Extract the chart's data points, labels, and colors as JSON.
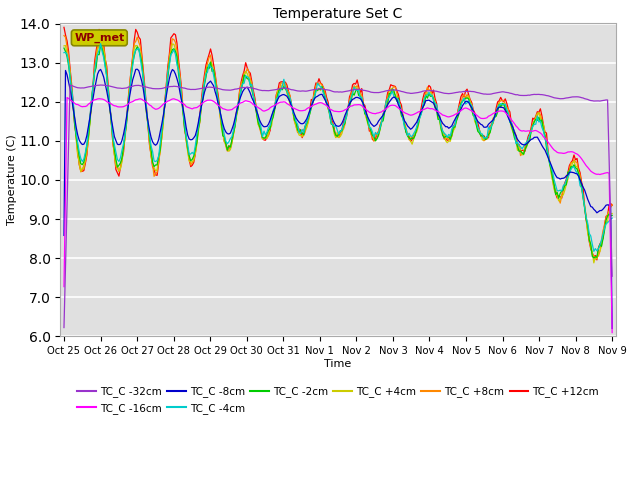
{
  "title": "Temperature Set C",
  "xlabel": "Time",
  "ylabel": "Temperature (C)",
  "ylim": [
    6.0,
    14.0
  ],
  "yticks": [
    6.0,
    7.0,
    8.0,
    9.0,
    10.0,
    11.0,
    12.0,
    13.0,
    14.0
  ],
  "background_color": "#e0e0e0",
  "series_colors": {
    "TC_C -32cm": "#9933cc",
    "TC_C -16cm": "#ff00ff",
    "TC_C -8cm": "#0000cc",
    "TC_C -4cm": "#00cccc",
    "TC_C -2cm": "#00cc00",
    "TC_C +4cm": "#cccc00",
    "TC_C +8cm": "#ff8800",
    "TC_C +12cm": "#ff0000"
  },
  "wp_met_box_facecolor": "#cccc00",
  "wp_met_box_edgecolor": "#888800",
  "xtick_labels": [
    "Oct 25",
    "Oct 26",
    "Oct 27",
    "Oct 28",
    "Oct 29",
    "Oct 30",
    "Oct 31",
    "Nov 1",
    "Nov 2",
    "Nov 3",
    "Nov 4",
    "Nov 5",
    "Nov 6",
    "Nov 7",
    "Nov 8",
    "Nov 9"
  ],
  "legend_order": [
    "TC_C -32cm",
    "TC_C -16cm",
    "TC_C -8cm",
    "TC_C -4cm",
    "TC_C -2cm",
    "TC_C +4cm",
    "TC_C +8cm",
    "TC_C +12cm"
  ]
}
